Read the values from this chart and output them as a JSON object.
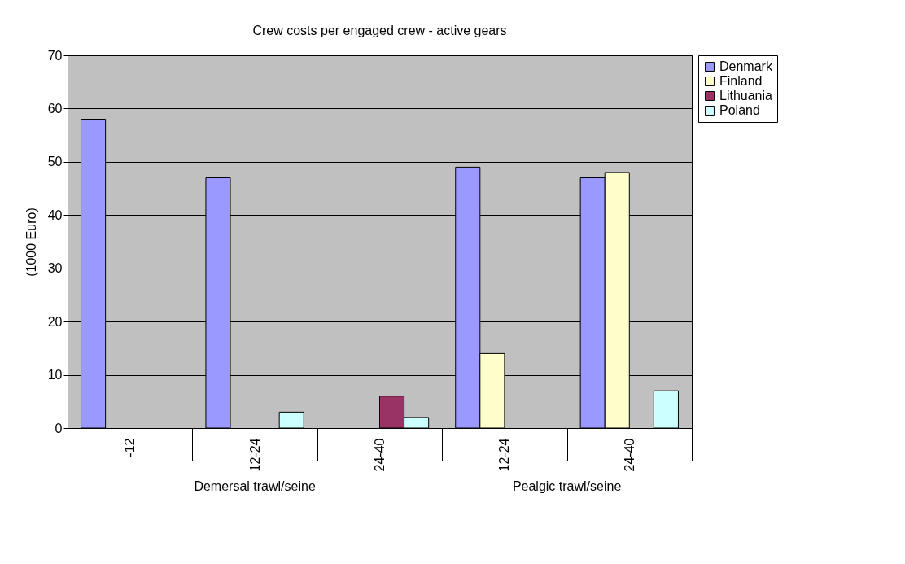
{
  "chart_data": {
    "type": "bar",
    "title": "Crew costs per engaged crew - active gears",
    "ylabel": "(1000 Euro)",
    "categories": [
      "-12",
      "12-24",
      "24-40",
      "12-24",
      "24-40"
    ],
    "annotations": [
      "Demersal trawl/seine",
      "Pealgic trawl/seine"
    ],
    "series": [
      {
        "name": "Denmark",
        "color": "#9999ff",
        "values": [
          58,
          47,
          null,
          49,
          47
        ]
      },
      {
        "name": "Finland",
        "color": "#ffffcc",
        "values": [
          null,
          null,
          null,
          14,
          48
        ]
      },
      {
        "name": "Lithuania",
        "color": "#993366",
        "values": [
          null,
          null,
          6,
          null,
          null
        ]
      },
      {
        "name": "Poland",
        "color": "#ccffff",
        "values": [
          null,
          3,
          2,
          null,
          7
        ]
      }
    ],
    "ylim": [
      0,
      70
    ],
    "yticks": [
      0,
      10,
      20,
      30,
      40,
      50,
      60,
      70
    ],
    "grid": "y",
    "legend": "right"
  }
}
